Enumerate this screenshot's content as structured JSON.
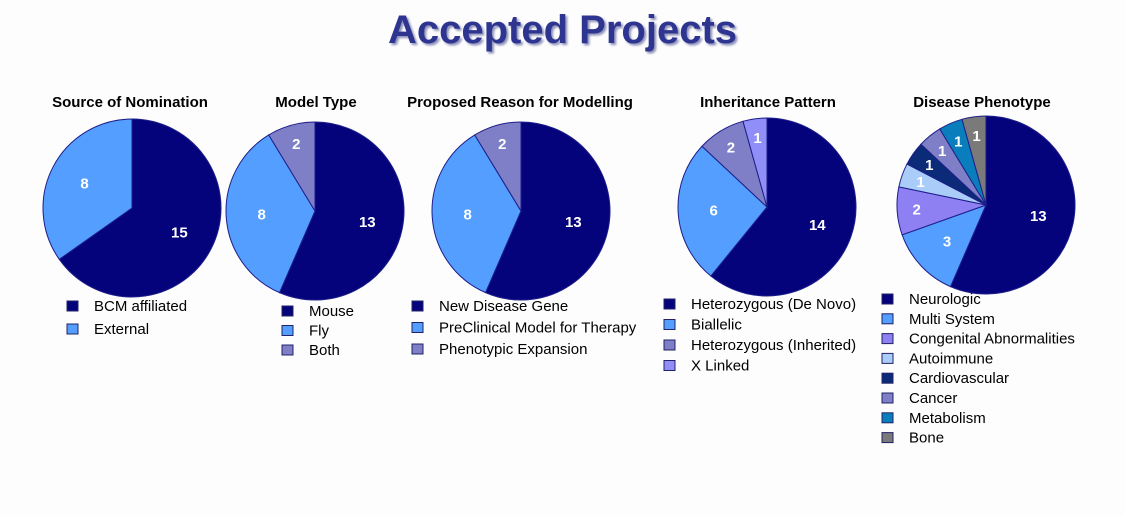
{
  "title": "Accepted Projects",
  "chart_data": [
    {
      "type": "pie",
      "title": "Source of Nomination",
      "categories": [
        "BCM affiliated",
        "External"
      ],
      "values": [
        15,
        8
      ],
      "colors": [
        "#04037c",
        "#539eff"
      ]
    },
    {
      "type": "pie",
      "title": "Model Type",
      "categories": [
        "Mouse",
        "Fly",
        "Both"
      ],
      "values": [
        13,
        8,
        2
      ],
      "colors": [
        "#04037c",
        "#539eff",
        "#7f7fc7"
      ]
    },
    {
      "type": "pie",
      "title": "Proposed Reason for Modelling",
      "categories": [
        "New Disease Gene",
        "PreClinical Model for Therapy",
        "Phenotypic Expansion"
      ],
      "values": [
        13,
        8,
        2
      ],
      "colors": [
        "#04037c",
        "#539eff",
        "#7f7fc7"
      ]
    },
    {
      "type": "pie",
      "title": "Inheritance Pattern",
      "categories": [
        "Heterozygous (De Novo)",
        "Biallelic",
        "Heterozygous (Inherited)",
        "X Linked"
      ],
      "values": [
        14,
        6,
        2,
        1
      ],
      "colors": [
        "#04037c",
        "#539eff",
        "#7f7fc7",
        "#8f8ff7"
      ]
    },
    {
      "type": "pie",
      "title": "Disease Phenotype",
      "categories": [
        "Neurologic",
        "Multi System",
        "Congenital Abnormalities",
        "Autoimmune",
        "Cardiovascular",
        "Cancer",
        "Metabolism",
        "Bone"
      ],
      "values": [
        13,
        3,
        2,
        1,
        1,
        1,
        1,
        1
      ],
      "colors": [
        "#04037c",
        "#539eff",
        "#8e80f3",
        "#a9ccf9",
        "#0b2a78",
        "#7f7fc7",
        "#0a7dbc",
        "#7a7a7a"
      ]
    }
  ]
}
